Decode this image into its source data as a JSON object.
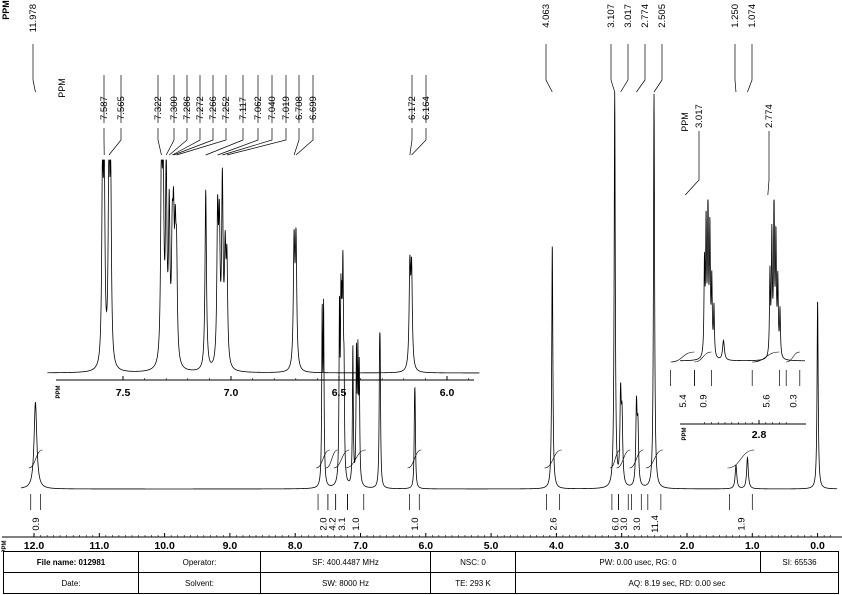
{
  "chart_data": [
    {
      "type": "line",
      "panel": "main",
      "xlabel": "PPM",
      "xlim": [
        12.2,
        -0.3
      ],
      "x_reversed": true,
      "ticks": [
        "12.0",
        "11.0",
        "10.0",
        "9.0",
        "8.0",
        "7.0",
        "6.0",
        "5.0",
        "4.0",
        "3.0",
        "2.0",
        "1.0",
        "0.0"
      ],
      "tick_values": [
        12,
        11,
        10,
        9,
        8,
        7,
        6,
        5,
        4,
        3,
        2,
        1,
        0
      ],
      "peak_label_header": "PPM",
      "peak_labels": [
        {
          "ppm": 11.978,
          "text": "11.978"
        },
        {
          "ppm": 4.063,
          "text": "4.063"
        },
        {
          "ppm": 3.107,
          "text": "3.107"
        },
        {
          "ppm": 3.017,
          "text": "3.017"
        },
        {
          "ppm": 2.774,
          "text": "2.774"
        },
        {
          "ppm": 2.505,
          "text": "2.505"
        },
        {
          "ppm": 1.25,
          "text": "1.250"
        },
        {
          "ppm": 1.074,
          "text": "1.074"
        }
      ],
      "peaks": [
        {
          "ppm": 11.978,
          "height": 0.22,
          "width": 0.025
        },
        {
          "ppm": 7.587,
          "height": 0.42,
          "width": 0.008
        },
        {
          "ppm": 7.565,
          "height": 0.43,
          "width": 0.008
        },
        {
          "ppm": 7.322,
          "height": 0.42,
          "width": 0.008
        },
        {
          "ppm": 7.3,
          "height": 0.38,
          "width": 0.008
        },
        {
          "ppm": 7.286,
          "height": 0.3,
          "width": 0.008
        },
        {
          "ppm": 7.272,
          "height": 0.28,
          "width": 0.008
        },
        {
          "ppm": 7.266,
          "height": 0.26,
          "width": 0.008
        },
        {
          "ppm": 7.252,
          "height": 0.22,
          "width": 0.008
        },
        {
          "ppm": 7.117,
          "height": 0.35,
          "width": 0.008
        },
        {
          "ppm": 7.062,
          "height": 0.32,
          "width": 0.008
        },
        {
          "ppm": 7.04,
          "height": 0.3,
          "width": 0.008
        },
        {
          "ppm": 7.019,
          "height": 0.28,
          "width": 0.008
        },
        {
          "ppm": 6.708,
          "height": 0.26,
          "width": 0.008
        },
        {
          "ppm": 6.699,
          "height": 0.26,
          "width": 0.008
        },
        {
          "ppm": 6.172,
          "height": 0.16,
          "width": 0.008
        },
        {
          "ppm": 6.164,
          "height": 0.16,
          "width": 0.008
        },
        {
          "ppm": 4.063,
          "height": 0.62,
          "width": 0.01
        },
        {
          "ppm": 3.107,
          "height": 1.0,
          "width": 0.01
        },
        {
          "ppm": 3.017,
          "height": 0.22,
          "width": 0.012
        },
        {
          "ppm": 2.995,
          "height": 0.16,
          "width": 0.012
        },
        {
          "ppm": 2.774,
          "height": 0.2,
          "width": 0.012
        },
        {
          "ppm": 2.752,
          "height": 0.14,
          "width": 0.012
        },
        {
          "ppm": 2.505,
          "height": 1.0,
          "width": 0.01
        },
        {
          "ppm": 1.25,
          "height": 0.06,
          "width": 0.015
        },
        {
          "ppm": 1.074,
          "height": 0.08,
          "width": 0.015
        },
        {
          "ppm": 0.0,
          "height": 0.48,
          "width": 0.01
        }
      ],
      "integrals": [
        {
          "from": 12.05,
          "to": 11.9,
          "label": "0.9"
        },
        {
          "from": 7.65,
          "to": 7.5,
          "label": "2.0"
        },
        {
          "from": 7.5,
          "to": 7.38,
          "label": "4.2"
        },
        {
          "from": 7.38,
          "to": 7.2,
          "label": "3.1"
        },
        {
          "from": 7.2,
          "to": 6.95,
          "label": "1.0"
        },
        {
          "from": 6.25,
          "to": 6.1,
          "label": "1.0"
        },
        {
          "from": 4.15,
          "to": 3.95,
          "label": "2.6"
        },
        {
          "from": 3.15,
          "to": 3.05,
          "label": "6.0"
        },
        {
          "from": 3.05,
          "to": 2.9,
          "label": "3.0"
        },
        {
          "from": 2.85,
          "to": 2.7,
          "label": "3.0"
        },
        {
          "from": 2.6,
          "to": 2.4,
          "label": "11.4"
        },
        {
          "from": 1.35,
          "to": 1.0,
          "label": "1.9"
        }
      ]
    },
    {
      "type": "line",
      "panel": "inset-aromatic",
      "xlabel": "PPM",
      "xlim": [
        7.85,
        5.85
      ],
      "x_reversed": true,
      "ticks": [
        "7.5",
        "7.0",
        "6.5",
        "6.0"
      ],
      "tick_values": [
        7.5,
        7.0,
        6.5,
        6.0
      ],
      "peak_label_header": "PPM",
      "peak_labels": [
        {
          "ppm": 7.587,
          "text": "7.587"
        },
        {
          "ppm": 7.565,
          "text": "7.565"
        },
        {
          "ppm": 7.322,
          "text": "7.322"
        },
        {
          "ppm": 7.3,
          "text": "7.300"
        },
        {
          "ppm": 7.286,
          "text": "7.286"
        },
        {
          "ppm": 7.272,
          "text": "7.272"
        },
        {
          "ppm": 7.266,
          "text": "7.266"
        },
        {
          "ppm": 7.252,
          "text": "7.252"
        },
        {
          "ppm": 7.117,
          "text": "7.117"
        },
        {
          "ppm": 7.062,
          "text": "7.062"
        },
        {
          "ppm": 7.04,
          "text": "7.040"
        },
        {
          "ppm": 7.019,
          "text": "7.019"
        },
        {
          "ppm": 6.708,
          "text": "6.708"
        },
        {
          "ppm": 6.699,
          "text": "6.699"
        },
        {
          "ppm": 6.172,
          "text": "6.172"
        },
        {
          "ppm": 6.164,
          "text": "6.164"
        }
      ],
      "peaks": [
        {
          "ppm": 7.595,
          "height": 0.9,
          "width": 0.004
        },
        {
          "ppm": 7.587,
          "height": 0.93,
          "width": 0.004
        },
        {
          "ppm": 7.565,
          "height": 1.0,
          "width": 0.004
        },
        {
          "ppm": 7.557,
          "height": 0.85,
          "width": 0.004
        },
        {
          "ppm": 7.322,
          "height": 1.0,
          "width": 0.004
        },
        {
          "ppm": 7.314,
          "height": 0.86,
          "width": 0.004
        },
        {
          "ppm": 7.3,
          "height": 0.92,
          "width": 0.004
        },
        {
          "ppm": 7.286,
          "height": 0.72,
          "width": 0.004
        },
        {
          "ppm": 7.272,
          "height": 0.52,
          "width": 0.004
        },
        {
          "ppm": 7.266,
          "height": 0.56,
          "width": 0.004
        },
        {
          "ppm": 7.258,
          "height": 0.5,
          "width": 0.004
        },
        {
          "ppm": 7.252,
          "height": 0.46,
          "width": 0.004
        },
        {
          "ppm": 7.117,
          "height": 0.88,
          "width": 0.004
        },
        {
          "ppm": 7.062,
          "height": 0.7,
          "width": 0.004
        },
        {
          "ppm": 7.054,
          "height": 0.62,
          "width": 0.004
        },
        {
          "ppm": 7.04,
          "height": 0.87,
          "width": 0.004
        },
        {
          "ppm": 7.027,
          "height": 0.5,
          "width": 0.004
        },
        {
          "ppm": 7.019,
          "height": 0.48,
          "width": 0.004
        },
        {
          "ppm": 6.708,
          "height": 0.6,
          "width": 0.004
        },
        {
          "ppm": 6.699,
          "height": 0.61,
          "width": 0.004
        },
        {
          "ppm": 6.172,
          "height": 0.48,
          "width": 0.004
        },
        {
          "ppm": 6.164,
          "height": 0.47,
          "width": 0.004
        }
      ]
    },
    {
      "type": "line",
      "panel": "inset-aliphatic",
      "xlabel": "PPM",
      "xlim": [
        3.12,
        2.66
      ],
      "x_reversed": true,
      "ticks": [
        "2.8"
      ],
      "tick_values": [
        2.8
      ],
      "peak_label_header": "PPM",
      "peak_labels": [
        {
          "ppm": 3.017,
          "text": "3.017"
        },
        {
          "ppm": 2.774,
          "text": "2.774"
        }
      ],
      "peaks": [
        {
          "ppm": 3.03,
          "height": 0.55,
          "width": 0.002
        },
        {
          "ppm": 3.024,
          "height": 0.78,
          "width": 0.002
        },
        {
          "ppm": 3.017,
          "height": 0.9,
          "width": 0.002
        },
        {
          "ppm": 3.01,
          "height": 0.75,
          "width": 0.002
        },
        {
          "ppm": 3.003,
          "height": 0.45,
          "width": 0.002
        },
        {
          "ppm": 2.995,
          "height": 0.3,
          "width": 0.002
        },
        {
          "ppm": 2.96,
          "height": 0.12,
          "width": 0.004
        },
        {
          "ppm": 2.789,
          "height": 0.5,
          "width": 0.002
        },
        {
          "ppm": 2.782,
          "height": 0.72,
          "width": 0.002
        },
        {
          "ppm": 2.774,
          "height": 0.95,
          "width": 0.002
        },
        {
          "ppm": 2.767,
          "height": 0.7,
          "width": 0.002
        },
        {
          "ppm": 2.76,
          "height": 0.45,
          "width": 0.002
        },
        {
          "ppm": 2.752,
          "height": 0.28,
          "width": 0.002
        }
      ],
      "integrals": [
        {
          "from": 3.06,
          "to": 2.99,
          "label": "5.4"
        },
        {
          "from": 2.99,
          "to": 2.94,
          "label": "0.9"
        },
        {
          "from": 2.82,
          "to": 2.74,
          "label": "5.6"
        },
        {
          "from": 2.72,
          "to": 2.68,
          "label": "0.3"
        }
      ]
    }
  ],
  "footer": {
    "file_name": "File name: 012981",
    "operator": "Operator:",
    "sf": "SF: 400.4487 MHz",
    "nsc": "NSC: 0",
    "pw": "PW: 0.00 usec, RG: 0",
    "si": "SI: 65536",
    "date": "Date:",
    "solvent": "Solvent:",
    "sw": "SW: 8000 Hz",
    "te": "TE: 293 K",
    "aq": "AQ: 8.19 sec, RD: 0.00 sec"
  }
}
